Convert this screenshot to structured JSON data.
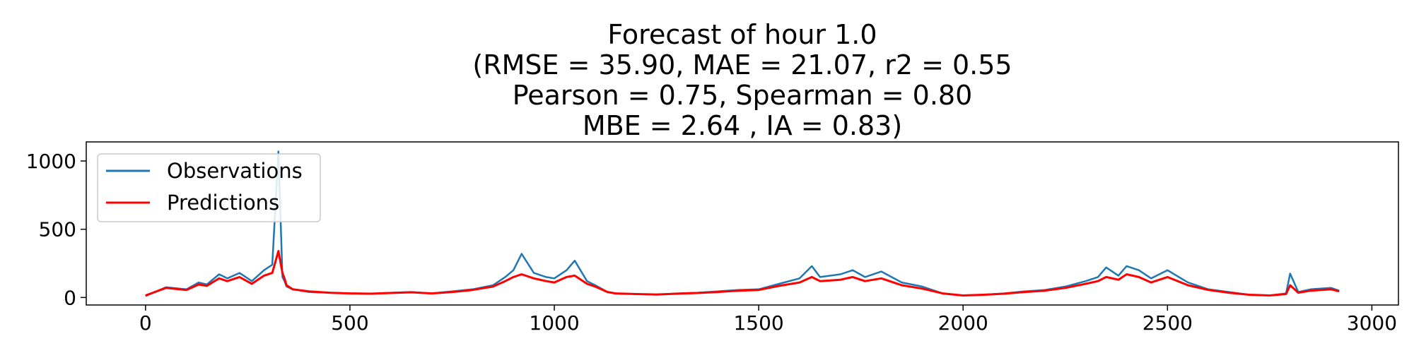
{
  "chart_data": {
    "type": "line",
    "title_lines": [
      "Forecast of hour 1.0",
      "(RMSE = 35.90, MAE = 21.07, r2 = 0.55",
      "Pearson = 0.75, Spearman = 0.80",
      "MBE = 2.64 , IA = 0.83)"
    ],
    "xlabel": "",
    "ylabel": "",
    "xlim": [
      -145,
      3065
    ],
    "ylim": [
      -55,
      1140
    ],
    "x_ticks": [
      0,
      500,
      1000,
      1500,
      2000,
      2500,
      3000
    ],
    "x_tick_labels": [
      "0",
      "500",
      "1000",
      "1500",
      "2000",
      "2500",
      "3000"
    ],
    "y_ticks": [
      0,
      500,
      1000
    ],
    "y_tick_labels": [
      "0",
      "500",
      "1000"
    ],
    "grid": false,
    "legend_position": "top-left",
    "series": [
      {
        "name": "Observations",
        "color": "#1f77b4",
        "x": [
          0,
          50,
          100,
          130,
          150,
          180,
          200,
          230,
          260,
          290,
          310,
          325,
          335,
          340,
          345,
          360,
          400,
          450,
          500,
          550,
          600,
          650,
          700,
          750,
          800,
          850,
          880,
          900,
          920,
          950,
          980,
          1000,
          1030,
          1050,
          1080,
          1100,
          1130,
          1150,
          1200,
          1250,
          1300,
          1350,
          1400,
          1450,
          1500,
          1550,
          1600,
          1630,
          1650,
          1700,
          1730,
          1760,
          1800,
          1850,
          1900,
          1950,
          2000,
          2050,
          2100,
          2150,
          2200,
          2250,
          2300,
          2330,
          2350,
          2380,
          2400,
          2430,
          2460,
          2500,
          2550,
          2600,
          2650,
          2700,
          2750,
          2790,
          2800,
          2820,
          2850,
          2900,
          2920
        ],
        "values": [
          10,
          75,
          60,
          110,
          95,
          170,
          140,
          180,
          120,
          200,
          240,
          1070,
          150,
          120,
          80,
          60,
          40,
          35,
          30,
          28,
          35,
          40,
          30,
          45,
          60,
          90,
          150,
          200,
          320,
          180,
          150,
          140,
          200,
          270,
          120,
          90,
          40,
          30,
          25,
          20,
          30,
          35,
          45,
          55,
          60,
          100,
          140,
          230,
          150,
          170,
          200,
          150,
          190,
          110,
          80,
          30,
          15,
          20,
          30,
          45,
          55,
          80,
          120,
          150,
          220,
          160,
          230,
          200,
          140,
          200,
          110,
          60,
          40,
          20,
          15,
          30,
          175,
          40,
          60,
          70,
          50
        ]
      },
      {
        "name": "Predictions",
        "color": "#ff0000",
        "x": [
          0,
          50,
          100,
          130,
          150,
          180,
          200,
          230,
          260,
          290,
          310,
          325,
          335,
          340,
          345,
          360,
          400,
          450,
          500,
          550,
          600,
          650,
          700,
          750,
          800,
          850,
          880,
          900,
          920,
          950,
          980,
          1000,
          1030,
          1050,
          1080,
          1100,
          1130,
          1150,
          1200,
          1250,
          1300,
          1350,
          1400,
          1450,
          1500,
          1550,
          1600,
          1630,
          1650,
          1700,
          1730,
          1760,
          1800,
          1850,
          1900,
          1950,
          2000,
          2050,
          2100,
          2150,
          2200,
          2250,
          2300,
          2330,
          2350,
          2380,
          2400,
          2430,
          2460,
          2500,
          2550,
          2600,
          2650,
          2700,
          2750,
          2790,
          2800,
          2820,
          2850,
          2900,
          2920
        ],
        "values": [
          15,
          70,
          55,
          95,
          85,
          140,
          120,
          150,
          100,
          160,
          180,
          340,
          180,
          140,
          90,
          60,
          45,
          35,
          30,
          28,
          33,
          38,
          30,
          40,
          55,
          80,
          120,
          150,
          170,
          140,
          120,
          110,
          150,
          160,
          100,
          80,
          40,
          30,
          25,
          22,
          28,
          33,
          40,
          50,
          55,
          85,
          110,
          150,
          120,
          130,
          150,
          120,
          140,
          90,
          65,
          30,
          15,
          20,
          28,
          40,
          50,
          70,
          100,
          120,
          150,
          130,
          170,
          150,
          110,
          150,
          90,
          55,
          35,
          20,
          15,
          25,
          90,
          35,
          50,
          60,
          45
        ]
      }
    ]
  }
}
